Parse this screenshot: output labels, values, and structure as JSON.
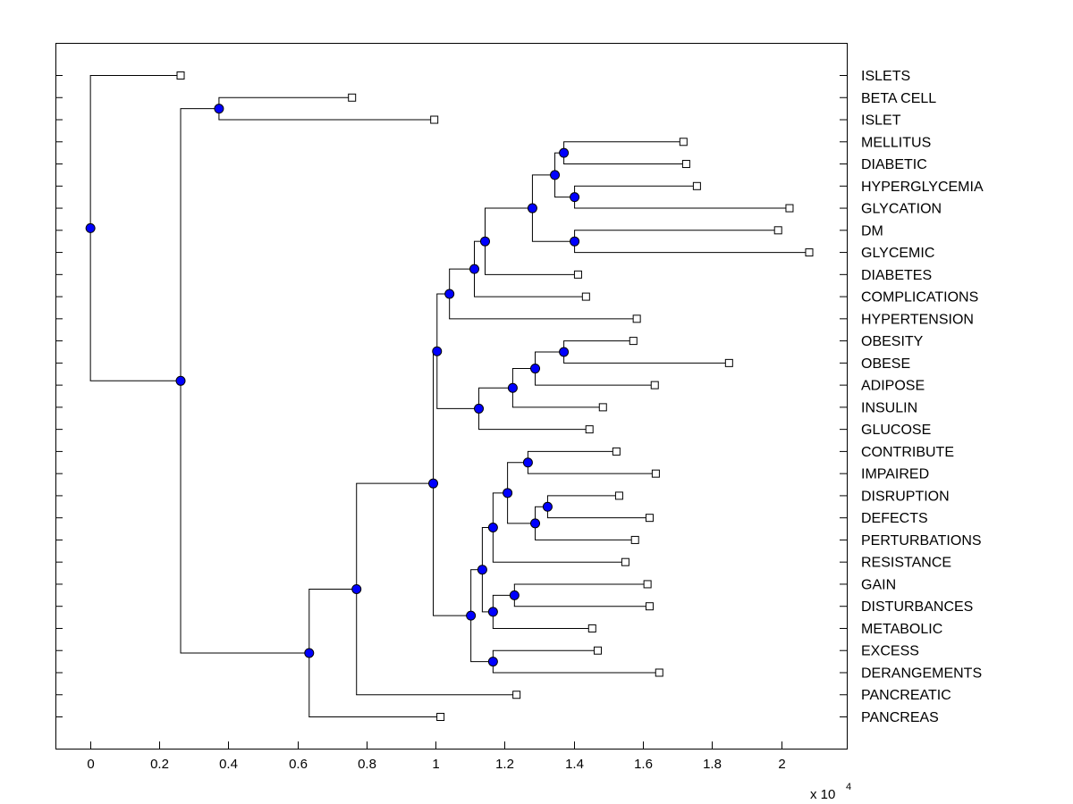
{
  "chart_data": {
    "type": "dendrogram",
    "title": "",
    "xlabel": "",
    "ylabel": "",
    "x_exponent_label": "x 10",
    "x_exponent": "4",
    "xlim": [
      -0.1,
      2.19
    ],
    "xticks": [
      0,
      0.2,
      0.4,
      0.6,
      0.8,
      1,
      1.2,
      1.4,
      1.6,
      1.8,
      2
    ],
    "xtick_labels": [
      "0",
      "0.2",
      "0.4",
      "0.6",
      "0.8",
      "1",
      "1.2",
      "1.4",
      "1.6",
      "1.8",
      "2"
    ],
    "grid": false,
    "colors": {
      "node": "#0000ff",
      "leaf": "#ffffff",
      "line": "#000000"
    },
    "tree": {
      "x": 0,
      "children": [
        {
          "label": "ISLETS",
          "x": 0.261
        },
        {
          "x": 0.261,
          "children": [
            {
              "x": 0.372,
              "children": [
                {
                  "label": "BETA CELL",
                  "x": 0.757
                },
                {
                  "label": "ISLET",
                  "x": 0.995
                }
              ]
            },
            {
              "x": 0.633,
              "children": [
                {
                  "x": 0.77,
                  "children": [
                    {
                      "x": 0.992,
                      "children": [
                        {
                          "x": 1.003,
                          "children": [
                            {
                              "x": 1.039,
                              "children": [
                                {
                                  "x": 1.111,
                                  "children": [
                                    {
                                      "x": 1.142,
                                      "children": [
                                        {
                                          "x": 1.279,
                                          "children": [
                                            {
                                              "x": 1.344,
                                              "children": [
                                                {
                                                  "x": 1.37,
                                                  "children": [
                                                    {
                                                      "label": "MELLITUS",
                                                      "x": 1.716
                                                    },
                                                    {
                                                      "label": "DIABETIC",
                                                      "x": 1.724
                                                    }
                                                  ]
                                                },
                                                {
                                                  "x": 1.401,
                                                  "children": [
                                                    {
                                                      "label": "HYPERGLYCEMIA",
                                                      "x": 1.755
                                                    },
                                                    {
                                                      "label": "GLYCATION",
                                                      "x": 2.023
                                                    }
                                                  ]
                                                }
                                              ]
                                            },
                                            {
                                              "x": 1.401,
                                              "children": [
                                                {
                                                  "label": "DM",
                                                  "x": 1.99
                                                },
                                                {
                                                  "label": "GLYCEMIC",
                                                  "x": 2.08
                                                }
                                              ]
                                            }
                                          ]
                                        },
                                        {
                                          "label": "DIABETES",
                                          "x": 1.411
                                        }
                                      ]
                                    },
                                    {
                                      "label": "COMPLICATIONS",
                                      "x": 1.434
                                    }
                                  ]
                                },
                                {
                                  "label": "HYPERTENSION",
                                  "x": 1.581
                                }
                              ]
                            },
                            {
                              "x": 1.124,
                              "children": [
                                {
                                  "x": 1.222,
                                  "children": [
                                    {
                                      "x": 1.287,
                                      "children": [
                                        {
                                          "x": 1.37,
                                          "children": [
                                            {
                                              "label": "OBESITY",
                                              "x": 1.571
                                            },
                                            {
                                              "label": "OBESE",
                                              "x": 1.848
                                            }
                                          ]
                                        },
                                        {
                                          "label": "ADIPOSE",
                                          "x": 1.633
                                        }
                                      ]
                                    },
                                    {
                                      "label": "INSULIN",
                                      "x": 1.483
                                    }
                                  ]
                                },
                                {
                                  "label": "GLUCOSE",
                                  "x": 1.444
                                }
                              ]
                            }
                          ]
                        },
                        {
                          "x": 1.101,
                          "children": [
                            {
                              "x": 1.134,
                              "children": [
                                {
                                  "x": 1.165,
                                  "children": [
                                    {
                                      "x": 1.207,
                                      "children": [
                                        {
                                          "x": 1.266,
                                          "children": [
                                            {
                                              "label": "CONTRIBUTE",
                                              "x": 1.522
                                            },
                                            {
                                              "label": "IMPAIRED",
                                              "x": 1.636
                                            }
                                          ]
                                        },
                                        {
                                          "x": 1.287,
                                          "children": [
                                            {
                                              "x": 1.323,
                                              "children": [
                                                {
                                                  "label": "DISRUPTION",
                                                  "x": 1.53
                                                },
                                                {
                                                  "label": "DEFECTS",
                                                  "x": 1.618
                                                }
                                              ]
                                            },
                                            {
                                              "label": "PERTURBATIONS",
                                              "x": 1.576
                                            }
                                          ]
                                        }
                                      ]
                                    },
                                    {
                                      "label": "RESISTANCE",
                                      "x": 1.548
                                    }
                                  ]
                                },
                                {
                                  "x": 1.165,
                                  "children": [
                                    {
                                      "x": 1.227,
                                      "children": [
                                        {
                                          "label": "GAIN",
                                          "x": 1.612
                                        },
                                        {
                                          "label": "DISTURBANCES",
                                          "x": 1.618
                                        }
                                      ]
                                    },
                                    {
                                      "label": "METABOLIC",
                                      "x": 1.452
                                    }
                                  ]
                                }
                              ]
                            },
                            {
                              "x": 1.165,
                              "children": [
                                {
                                  "label": "EXCESS",
                                  "x": 1.468
                                },
                                {
                                  "label": "DERANGEMENTS",
                                  "x": 1.646
                                }
                              ]
                            }
                          ]
                        }
                      ]
                    },
                    {
                      "label": "PANCREATIC",
                      "x": 1.233
                    }
                  ]
                },
                {
                  "label": "PANCREAS",
                  "x": 1.013
                }
              ]
            }
          ]
        }
      ]
    }
  }
}
